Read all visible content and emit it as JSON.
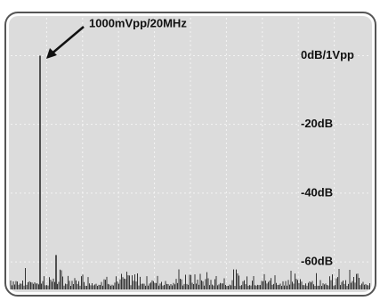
{
  "chart_data": {
    "type": "spectrum",
    "annotation": "1000mVpp/20MHz",
    "values": [
      0,
      -58
    ],
    "color": "#222222",
    "ylim": [
      -68,
      11
    ],
    "yticks": [
      {
        "value": 0,
        "label": "0dB/1Vpp"
      },
      {
        "value": -20,
        "label": "-20dB"
      },
      {
        "value": -40,
        "label": "-40dB"
      },
      {
        "value": -60,
        "label": "-60dB"
      }
    ],
    "grid": true
  }
}
